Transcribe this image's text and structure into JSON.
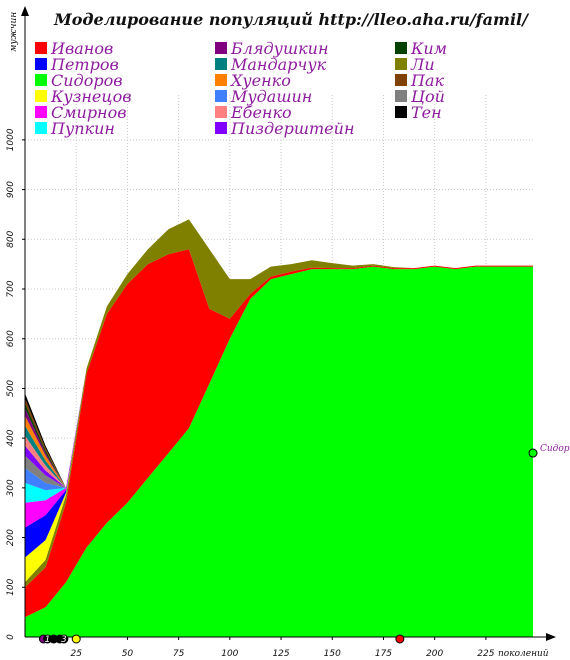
{
  "chart_data": {
    "type": "bar",
    "title": "Моделирование популяций  http://lleo.aha.ru/famil/",
    "ylabel": "мужчин",
    "xlabel": "поколений",
    "xlim": [
      0,
      248
    ],
    "ylim": [
      0,
      1050
    ],
    "x_ticks": [
      25,
      50,
      75,
      100,
      125,
      150,
      175,
      200,
      225
    ],
    "y_ticks": [
      100,
      200,
      300,
      400,
      500,
      600,
      700,
      800,
      900,
      1000
    ],
    "grid": true,
    "legend_position": "top",
    "legend": [
      {
        "name": "Иванов",
        "color": "#ff0000"
      },
      {
        "name": "Блядушкин",
        "color": "#800080"
      },
      {
        "name": "Ким",
        "color": "#004000"
      },
      {
        "name": "Петров",
        "color": "#0000ff"
      },
      {
        "name": "Мандарчук",
        "color": "#008080"
      },
      {
        "name": "Ли",
        "color": "#808000"
      },
      {
        "name": "Сидоров",
        "color": "#00ff00"
      },
      {
        "name": "Хуенко",
        "color": "#ff8000"
      },
      {
        "name": "Пак",
        "color": "#804000"
      },
      {
        "name": "Кузнецов",
        "color": "#ffff00"
      },
      {
        "name": "Мудашин",
        "color": "#4080ff"
      },
      {
        "name": "Цой",
        "color": "#808080"
      },
      {
        "name": "Смирнов",
        "color": "#ff00ff"
      },
      {
        "name": "Ебенко",
        "color": "#ff8080"
      },
      {
        "name": "Тен",
        "color": "#000000"
      },
      {
        "name": "Пупкин",
        "color": "#00ffff"
      },
      {
        "name": "Пиздерштейн",
        "color": "#8000ff"
      }
    ],
    "series": [
      {
        "name": "Сидоров",
        "color": "#00ff00",
        "x": [
          0,
          10,
          20,
          30,
          40,
          50,
          60,
          70,
          80,
          90,
          100,
          110,
          120,
          130,
          140,
          150,
          160,
          170,
          180,
          190,
          200,
          210,
          220,
          230,
          248
        ],
        "values": [
          40,
          60,
          110,
          180,
          230,
          270,
          320,
          370,
          420,
          510,
          600,
          680,
          720,
          730,
          740,
          740,
          740,
          745,
          740,
          740,
          745,
          740,
          745,
          745,
          745
        ]
      },
      {
        "name": "Иванов",
        "color": "#ff0000",
        "x": [
          0,
          10,
          20,
          30,
          40,
          50,
          60,
          70,
          80,
          90,
          100,
          110,
          120,
          130,
          140,
          150,
          160,
          170,
          180,
          190,
          200,
          210,
          220,
          230,
          248
        ],
        "values": [
          60,
          80,
          160,
          350,
          420,
          440,
          430,
          400,
          360,
          150,
          40,
          10,
          5,
          5,
          3,
          2,
          2,
          2,
          2,
          2,
          2,
          2,
          2,
          2,
          2
        ]
      },
      {
        "name": "Ли",
        "color": "#808000",
        "x": [
          0,
          10,
          20,
          30,
          40,
          50,
          60,
          70,
          80,
          90,
          100,
          110,
          120,
          130,
          140,
          150,
          160,
          170,
          180,
          190,
          200,
          210,
          220,
          230,
          248
        ],
        "values": [
          10,
          15,
          15,
          10,
          15,
          20,
          30,
          50,
          60,
          120,
          80,
          30,
          20,
          15,
          15,
          10,
          5,
          3,
          2,
          0,
          0,
          0,
          0,
          0,
          0
        ]
      },
      {
        "name": "Кузнецов",
        "color": "#ffff00",
        "x": [
          0,
          10,
          20,
          30,
          40,
          50,
          60,
          70,
          80,
          90,
          100,
          110,
          120,
          130,
          140,
          150,
          160,
          170,
          180,
          190,
          200,
          210,
          220,
          230,
          248
        ],
        "values": [
          50,
          40,
          5,
          0,
          0,
          0,
          0,
          0,
          0,
          0,
          0,
          0,
          0,
          0,
          0,
          0,
          0,
          0,
          0,
          0,
          0,
          0,
          0,
          0,
          0
        ]
      },
      {
        "name": "Петров",
        "color": "#0000ff",
        "x": [
          0,
          10,
          20,
          30,
          40,
          50,
          60,
          70,
          80,
          90,
          100,
          110,
          120,
          130,
          140,
          150,
          160,
          170,
          180,
          190,
          200,
          210,
          220,
          230,
          248
        ],
        "values": [
          60,
          50,
          5,
          0,
          0,
          0,
          0,
          0,
          0,
          0,
          0,
          0,
          0,
          0,
          0,
          0,
          0,
          0,
          0,
          0,
          0,
          0,
          0,
          0,
          0
        ]
      },
      {
        "name": "Смирнов",
        "color": "#ff00ff",
        "x": [
          0,
          10,
          20,
          30,
          40,
          50,
          60,
          70,
          80,
          90,
          100,
          110,
          120,
          130,
          140,
          150,
          160,
          170,
          180,
          190,
          200,
          210,
          220,
          230,
          248
        ],
        "values": [
          50,
          30,
          5,
          0,
          0,
          0,
          0,
          0,
          0,
          0,
          0,
          0,
          0,
          0,
          0,
          0,
          0,
          0,
          0,
          0,
          0,
          0,
          0,
          0,
          0
        ]
      },
      {
        "name": "Пупкин",
        "color": "#00ffff",
        "x": [
          0,
          10,
          20,
          30,
          40,
          50,
          60,
          70,
          80,
          90,
          100,
          110,
          120,
          130,
          140,
          150,
          160,
          170,
          180,
          190,
          200,
          210,
          220,
          230,
          248
        ],
        "values": [
          40,
          20,
          0,
          0,
          0,
          0,
          0,
          0,
          0,
          0,
          0,
          0,
          0,
          0,
          0,
          0,
          0,
          0,
          0,
          0,
          0,
          0,
          0,
          0,
          0
        ]
      },
      {
        "name": "Мудашин",
        "color": "#4080ff",
        "x": [
          0,
          10,
          20,
          30,
          40,
          50,
          60,
          70,
          80,
          90,
          100,
          110,
          120,
          130,
          140,
          150,
          160,
          170,
          180,
          190,
          200,
          210,
          220,
          230,
          248
        ],
        "values": [
          30,
          15,
          0,
          0,
          0,
          0,
          0,
          0,
          0,
          0,
          0,
          0,
          0,
          0,
          0,
          0,
          0,
          0,
          0,
          0,
          0,
          0,
          0,
          0,
          0
        ]
      },
      {
        "name": "Цой",
        "color": "#808080",
        "x": [
          0,
          10,
          20,
          30,
          40,
          50,
          60,
          70,
          80,
          90,
          100,
          110,
          120,
          130,
          140,
          150,
          160,
          170,
          180,
          190,
          200,
          210,
          220,
          230,
          248
        ],
        "values": [
          25,
          15,
          0,
          0,
          0,
          0,
          0,
          0,
          0,
          0,
          0,
          0,
          0,
          0,
          0,
          0,
          0,
          0,
          0,
          0,
          0,
          0,
          0,
          0,
          0
        ]
      },
      {
        "name": "Пиздерштейн",
        "color": "#8000ff",
        "x": [
          0,
          10,
          20,
          30,
          40,
          50,
          60,
          70,
          80,
          90,
          100,
          110,
          120,
          130,
          140,
          150,
          160,
          170,
          180,
          190,
          200,
          210,
          220,
          230,
          248
        ],
        "values": [
          20,
          10,
          0,
          0,
          0,
          0,
          0,
          0,
          0,
          0,
          0,
          0,
          0,
          0,
          0,
          0,
          0,
          0,
          0,
          0,
          0,
          0,
          0,
          0,
          0
        ]
      },
      {
        "name": "Ебенко",
        "color": "#ff8080",
        "x": [
          0,
          10,
          20,
          30,
          40,
          50,
          60,
          70,
          80,
          90,
          100,
          110,
          120,
          130,
          140,
          150,
          160,
          170,
          180,
          190,
          200,
          210,
          220,
          230,
          248
        ],
        "values": [
          20,
          10,
          0,
          0,
          0,
          0,
          0,
          0,
          0,
          0,
          0,
          0,
          0,
          0,
          0,
          0,
          0,
          0,
          0,
          0,
          0,
          0,
          0,
          0,
          0
        ]
      },
      {
        "name": "Мандарчук",
        "color": "#008080",
        "x": [
          0,
          10,
          20,
          30,
          40,
          50,
          60,
          70,
          80,
          90,
          100,
          110,
          120,
          130,
          140,
          150,
          160,
          170,
          180,
          190,
          200,
          210,
          220,
          230,
          248
        ],
        "values": [
          20,
          10,
          0,
          0,
          0,
          0,
          0,
          0,
          0,
          0,
          0,
          0,
          0,
          0,
          0,
          0,
          0,
          0,
          0,
          0,
          0,
          0,
          0,
          0,
          0
        ]
      },
      {
        "name": "Хуенко",
        "color": "#ff8000",
        "x": [
          0,
          10,
          20,
          30,
          40,
          50,
          60,
          70,
          80,
          90,
          100,
          110,
          120,
          130,
          140,
          150,
          160,
          170,
          180,
          190,
          200,
          210,
          220,
          230,
          248
        ],
        "values": [
          20,
          10,
          0,
          0,
          0,
          0,
          0,
          0,
          0,
          0,
          0,
          0,
          0,
          0,
          0,
          0,
          0,
          0,
          0,
          0,
          0,
          0,
          0,
          0,
          0
        ]
      },
      {
        "name": "Блядушкин",
        "color": "#800080",
        "x": [
          0,
          10,
          20,
          30,
          40,
          50,
          60,
          70,
          80,
          90,
          100,
          110,
          120,
          130,
          140,
          150,
          160,
          170,
          180,
          190,
          200,
          210,
          220,
          230,
          248
        ],
        "values": [
          15,
          5,
          0,
          0,
          0,
          0,
          0,
          0,
          0,
          0,
          0,
          0,
          0,
          0,
          0,
          0,
          0,
          0,
          0,
          0,
          0,
          0,
          0,
          0,
          0
        ]
      },
      {
        "name": "Ким",
        "color": "#004000",
        "x": [
          0,
          10,
          20,
          30,
          40,
          50,
          60,
          70,
          80,
          90,
          100,
          110,
          120,
          130,
          140,
          150,
          160,
          170,
          180,
          190,
          200,
          210,
          220,
          230,
          248
        ],
        "values": [
          10,
          5,
          0,
          0,
          0,
          0,
          0,
          0,
          0,
          0,
          0,
          0,
          0,
          0,
          0,
          0,
          0,
          0,
          0,
          0,
          0,
          0,
          0,
          0,
          0
        ]
      },
      {
        "name": "Пак",
        "color": "#804000",
        "x": [
          0,
          10,
          20,
          30,
          40,
          50,
          60,
          70,
          80,
          90,
          100,
          110,
          120,
          130,
          140,
          150,
          160,
          170,
          180,
          190,
          200,
          210,
          220,
          230,
          248
        ],
        "values": [
          10,
          5,
          0,
          0,
          0,
          0,
          0,
          0,
          0,
          0,
          0,
          0,
          0,
          0,
          0,
          0,
          0,
          0,
          0,
          0,
          0,
          0,
          0,
          0,
          0
        ]
      },
      {
        "name": "Тен",
        "color": "#000000",
        "x": [
          0,
          10,
          20,
          30,
          40,
          50,
          60,
          70,
          80,
          90,
          100,
          110,
          120,
          130,
          140,
          150,
          160,
          170,
          180,
          190,
          200,
          210,
          220,
          230,
          248
        ],
        "values": [
          10,
          5,
          0,
          0,
          0,
          0,
          0,
          0,
          0,
          0,
          0,
          0,
          0,
          0,
          0,
          0,
          0,
          0,
          0,
          0,
          0,
          0,
          0,
          0,
          0
        ]
      }
    ],
    "annotations": [
      {
        "text": "Сидоров",
        "x": 248,
        "y": 370,
        "color": "#00ff00"
      }
    ],
    "extinction_markers": [
      {
        "x": 9,
        "label": "",
        "color": "#880088"
      },
      {
        "x": 11,
        "label": "1",
        "color": "#000000"
      },
      {
        "x": 14,
        "label": "",
        "color": "#000000"
      },
      {
        "x": 17,
        "label": "",
        "color": "#000000"
      },
      {
        "x": 19,
        "label": "3",
        "color": "#000000"
      },
      {
        "x": 25,
        "label": "",
        "color": "#ffff00"
      },
      {
        "x": 183,
        "label": "",
        "color": "#ff0000"
      }
    ]
  }
}
